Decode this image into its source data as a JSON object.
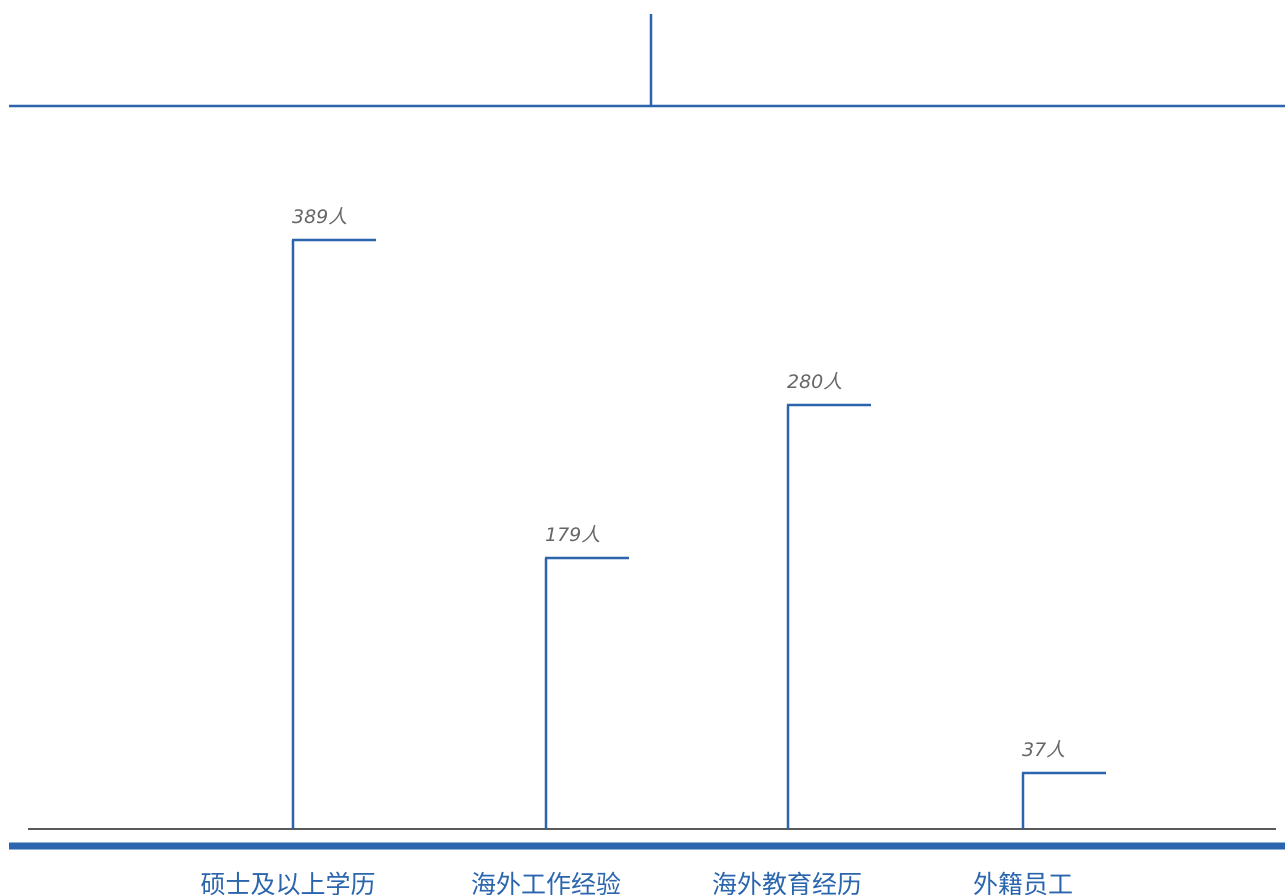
{
  "colors": {
    "accent": "#2a65ad",
    "baseline": "#222222",
    "value_label": "#666666"
  },
  "chart_data": {
    "type": "bar",
    "categories": [
      "硕士及以上学历",
      "海外工作经验",
      "海外教育经历",
      "外籍员工"
    ],
    "values": [
      389,
      179,
      280,
      37
    ],
    "value_labels": [
      "389人",
      "179人",
      "280人",
      "37人"
    ],
    "title": "",
    "xlabel": "",
    "ylabel": "",
    "ylim": [
      0,
      389
    ],
    "grid": false,
    "legend": "none"
  }
}
